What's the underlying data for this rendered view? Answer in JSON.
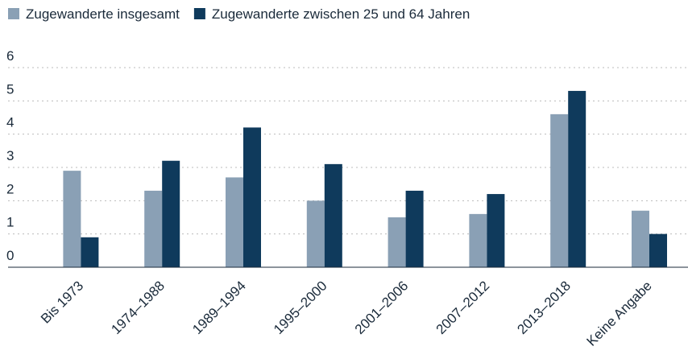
{
  "chart_data": {
    "type": "bar",
    "categories": [
      "Bis 1973",
      "1974–1988",
      "1989–1994",
      "1995–2000",
      "2001–2006",
      "2007–2012",
      "2013–2018",
      "Keine Angabe"
    ],
    "series": [
      {
        "name": "Zugewanderte insgesamt",
        "color": "#8aa0b5",
        "values": [
          2.9,
          2.3,
          2.7,
          2.0,
          1.5,
          1.6,
          4.6,
          1.7
        ]
      },
      {
        "name": "Zugewanderte zwischen 25 und 64 Jahren",
        "color": "#0f3a5c",
        "values": [
          0.9,
          3.2,
          4.2,
          3.1,
          2.3,
          2.2,
          5.3,
          1.0
        ]
      }
    ],
    "ylim": [
      0,
      6
    ],
    "yticks": [
      0,
      1,
      2,
      3,
      4,
      5,
      6
    ],
    "grid": true,
    "legend": "top-left"
  }
}
